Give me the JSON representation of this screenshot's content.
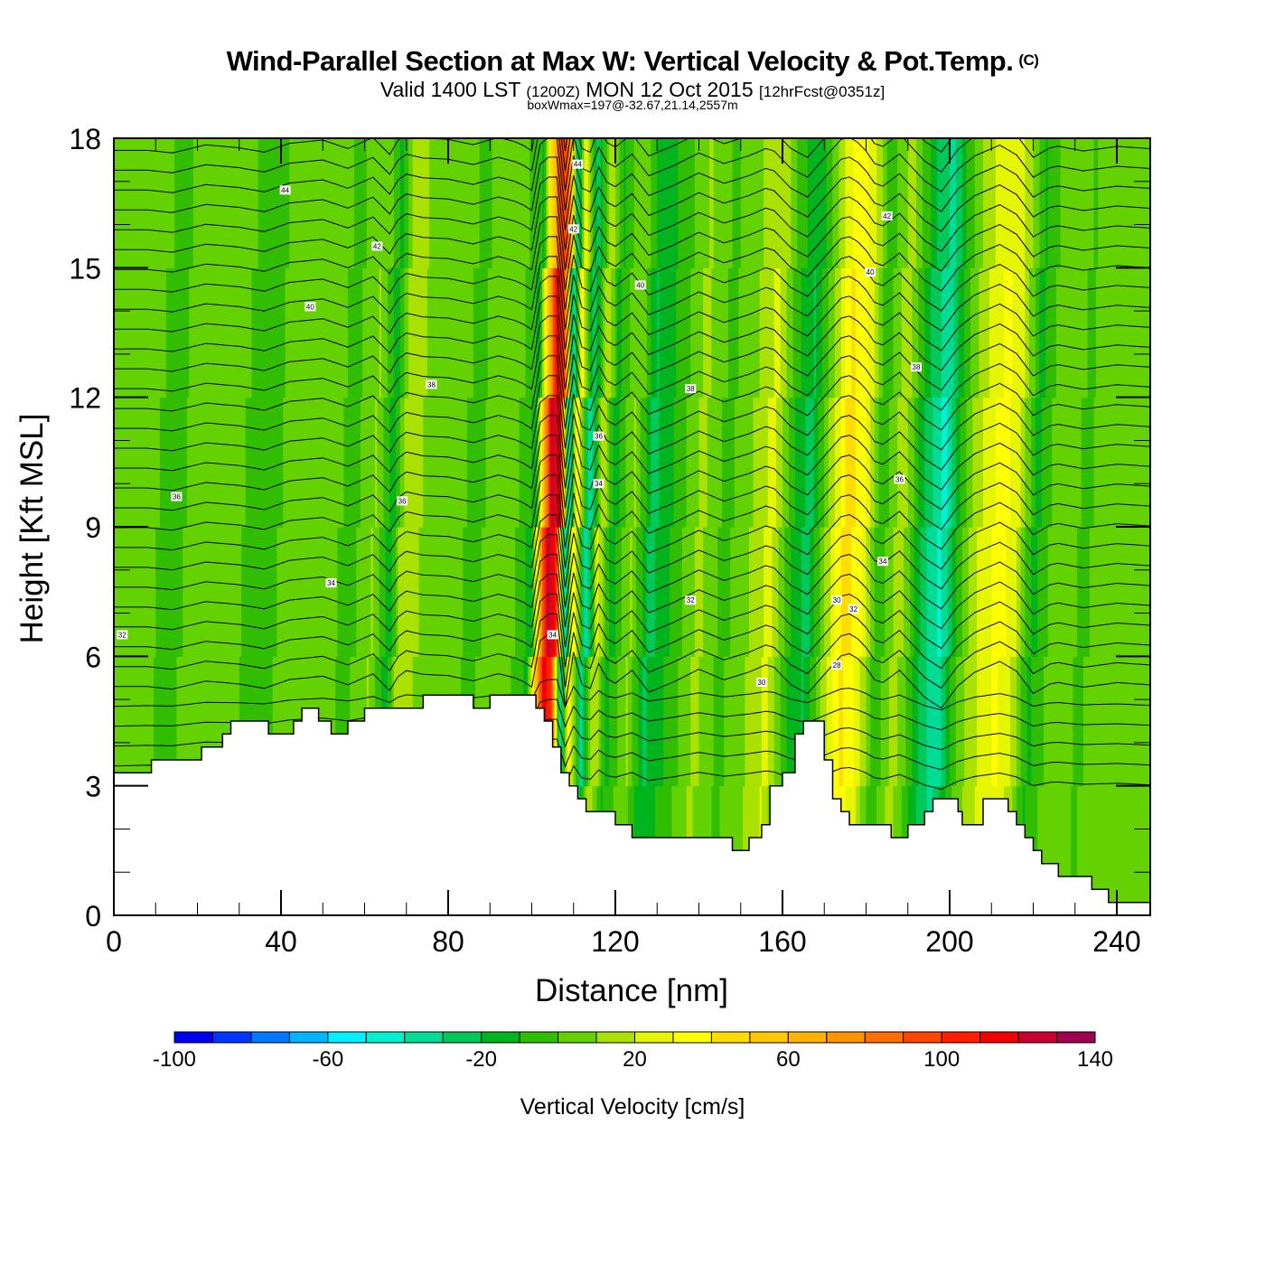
{
  "header": {
    "title": "Wind-Parallel Section at Max W: Vertical Velocity & Pot.Temp.",
    "copyright": "(C)",
    "subtitle_prefix": "Valid 1400 LST",
    "subtitle_utc": "(1200Z)",
    "subtitle_date": "MON 12 Oct 2015",
    "subtitle_forecast": "[12hrFcst@0351z]",
    "subsubtitle": "boxWmax=197@-32.67,21.14,2557m"
  },
  "chart_data": {
    "type": "heatmap",
    "title": "Wind-Parallel Section at Max W: Vertical Velocity & Pot.Temp.",
    "xlabel": "Distance [nm]",
    "ylabel": "Height [Kft MSL]",
    "xlim": [
      0,
      248
    ],
    "ylim": [
      0,
      18
    ],
    "x_ticks": [
      0,
      40,
      80,
      120,
      160,
      200,
      240
    ],
    "y_ticks": [
      0,
      3,
      6,
      9,
      12,
      15,
      18
    ],
    "colorbar": {
      "title": "Vertical Velocity [cm/s]",
      "levels": [
        -100,
        -90,
        -80,
        -70,
        -60,
        -50,
        -40,
        -30,
        -20,
        -10,
        0,
        10,
        20,
        30,
        40,
        50,
        60,
        70,
        80,
        90,
        100,
        110,
        120,
        130,
        140
      ],
      "tick_labels": [
        "-100",
        "-60",
        "-20",
        "20",
        "60",
        "100",
        "140"
      ],
      "colors": [
        "#0000f0",
        "#0036ff",
        "#0078ff",
        "#00b4ff",
        "#00f0ff",
        "#00f0d2",
        "#00dc96",
        "#00c85a",
        "#00b41e",
        "#32be00",
        "#64d200",
        "#aae100",
        "#e6f500",
        "#ffff00",
        "#ffdc00",
        "#ffc800",
        "#ffb400",
        "#ff9600",
        "#ff6e00",
        "#ff4600",
        "#ff1e00",
        "#f00000",
        "#c8002d",
        "#a00050"
      ]
    },
    "w_bands": [
      {
        "x": 0,
        "w": 0
      },
      {
        "x": 8,
        "w": -2
      },
      {
        "x": 14,
        "w": -8
      },
      {
        "x": 22,
        "w": 4
      },
      {
        "x": 30,
        "w": -3
      },
      {
        "x": 36,
        "w": -12
      },
      {
        "x": 42,
        "w": 2
      },
      {
        "x": 50,
        "w": 6
      },
      {
        "x": 56,
        "w": -10
      },
      {
        "x": 62,
        "w": 8
      },
      {
        "x": 66,
        "w": -22
      },
      {
        "x": 69,
        "w": 14
      },
      {
        "x": 74,
        "w": 5
      },
      {
        "x": 80,
        "w": 2
      },
      {
        "x": 86,
        "w": -8
      },
      {
        "x": 92,
        "w": 4
      },
      {
        "x": 97,
        "w": -6
      },
      {
        "x": 100,
        "w": -20
      },
      {
        "x": 102,
        "w": 60
      },
      {
        "x": 104,
        "w": 130
      },
      {
        "x": 106,
        "w": 110
      },
      {
        "x": 108,
        "w": -55
      },
      {
        "x": 110,
        "w": 40
      },
      {
        "x": 113,
        "w": -45
      },
      {
        "x": 116,
        "w": 20
      },
      {
        "x": 119,
        "w": -20
      },
      {
        "x": 124,
        "w": 8
      },
      {
        "x": 128,
        "w": -30
      },
      {
        "x": 134,
        "w": -12
      },
      {
        "x": 140,
        "w": 10
      },
      {
        "x": 146,
        "w": -8
      },
      {
        "x": 152,
        "w": 6
      },
      {
        "x": 157,
        "w": 22
      },
      {
        "x": 162,
        "w": -15
      },
      {
        "x": 166,
        "w": -30
      },
      {
        "x": 171,
        "w": 12
      },
      {
        "x": 175,
        "w": 45
      },
      {
        "x": 179,
        "w": 28
      },
      {
        "x": 183,
        "w": -14
      },
      {
        "x": 188,
        "w": 14
      },
      {
        "x": 194,
        "w": -32
      },
      {
        "x": 198,
        "w": -50
      },
      {
        "x": 202,
        "w": -10
      },
      {
        "x": 206,
        "w": 14
      },
      {
        "x": 212,
        "w": 34
      },
      {
        "x": 216,
        "w": 18
      },
      {
        "x": 220,
        "w": -20
      },
      {
        "x": 225,
        "w": 2
      },
      {
        "x": 232,
        "w": -6
      },
      {
        "x": 240,
        "w": 4
      },
      {
        "x": 248,
        "w": 2
      }
    ],
    "terrain": [
      {
        "x": 0,
        "h": 3.3
      },
      {
        "x": 9,
        "h": 3.3
      },
      {
        "x": 9,
        "h": 3.6
      },
      {
        "x": 21,
        "h": 3.6
      },
      {
        "x": 21,
        "h": 3.9
      },
      {
        "x": 26,
        "h": 3.9
      },
      {
        "x": 26,
        "h": 4.2
      },
      {
        "x": 28,
        "h": 4.2
      },
      {
        "x": 28,
        "h": 4.5
      },
      {
        "x": 37,
        "h": 4.5
      },
      {
        "x": 37,
        "h": 4.2
      },
      {
        "x": 43,
        "h": 4.2
      },
      {
        "x": 43,
        "h": 4.5
      },
      {
        "x": 45,
        "h": 4.5
      },
      {
        "x": 45,
        "h": 4.8
      },
      {
        "x": 49,
        "h": 4.8
      },
      {
        "x": 49,
        "h": 4.5
      },
      {
        "x": 52,
        "h": 4.5
      },
      {
        "x": 52,
        "h": 4.2
      },
      {
        "x": 56,
        "h": 4.2
      },
      {
        "x": 56,
        "h": 4.5
      },
      {
        "x": 60,
        "h": 4.5
      },
      {
        "x": 60,
        "h": 4.8
      },
      {
        "x": 74,
        "h": 4.8
      },
      {
        "x": 74,
        "h": 5.1
      },
      {
        "x": 86,
        "h": 5.1
      },
      {
        "x": 86,
        "h": 4.8
      },
      {
        "x": 90,
        "h": 4.8
      },
      {
        "x": 90,
        "h": 5.1
      },
      {
        "x": 101,
        "h": 5.1
      },
      {
        "x": 101,
        "h": 4.8
      },
      {
        "x": 103,
        "h": 4.8
      },
      {
        "x": 103,
        "h": 4.5
      },
      {
        "x": 105,
        "h": 4.5
      },
      {
        "x": 105,
        "h": 3.9
      },
      {
        "x": 107,
        "h": 3.9
      },
      {
        "x": 107,
        "h": 3.3
      },
      {
        "x": 109,
        "h": 3.3
      },
      {
        "x": 109,
        "h": 3.0
      },
      {
        "x": 111,
        "h": 3.0
      },
      {
        "x": 111,
        "h": 2.7
      },
      {
        "x": 113,
        "h": 2.7
      },
      {
        "x": 113,
        "h": 2.4
      },
      {
        "x": 120,
        "h": 2.4
      },
      {
        "x": 120,
        "h": 2.1
      },
      {
        "x": 124,
        "h": 2.1
      },
      {
        "x": 124,
        "h": 1.8
      },
      {
        "x": 148,
        "h": 1.8
      },
      {
        "x": 148,
        "h": 1.5
      },
      {
        "x": 152,
        "h": 1.5
      },
      {
        "x": 152,
        "h": 1.8
      },
      {
        "x": 155,
        "h": 1.8
      },
      {
        "x": 155,
        "h": 2.1
      },
      {
        "x": 157,
        "h": 2.1
      },
      {
        "x": 157,
        "h": 3.0
      },
      {
        "x": 160,
        "h": 3.0
      },
      {
        "x": 160,
        "h": 3.3
      },
      {
        "x": 163,
        "h": 3.3
      },
      {
        "x": 163,
        "h": 4.2
      },
      {
        "x": 165,
        "h": 4.2
      },
      {
        "x": 165,
        "h": 4.5
      },
      {
        "x": 170,
        "h": 4.5
      },
      {
        "x": 170,
        "h": 3.6
      },
      {
        "x": 172,
        "h": 3.6
      },
      {
        "x": 172,
        "h": 2.7
      },
      {
        "x": 174,
        "h": 2.7
      },
      {
        "x": 174,
        "h": 2.4
      },
      {
        "x": 176,
        "h": 2.4
      },
      {
        "x": 176,
        "h": 2.1
      },
      {
        "x": 186,
        "h": 2.1
      },
      {
        "x": 186,
        "h": 1.8
      },
      {
        "x": 190,
        "h": 1.8
      },
      {
        "x": 190,
        "h": 2.1
      },
      {
        "x": 194,
        "h": 2.1
      },
      {
        "x": 194,
        "h": 2.4
      },
      {
        "x": 196,
        "h": 2.4
      },
      {
        "x": 196,
        "h": 2.7
      },
      {
        "x": 202,
        "h": 2.7
      },
      {
        "x": 202,
        "h": 2.4
      },
      {
        "x": 203,
        "h": 2.4
      },
      {
        "x": 203,
        "h": 2.1
      },
      {
        "x": 208,
        "h": 2.1
      },
      {
        "x": 208,
        "h": 2.7
      },
      {
        "x": 214,
        "h": 2.7
      },
      {
        "x": 214,
        "h": 2.4
      },
      {
        "x": 216,
        "h": 2.4
      },
      {
        "x": 216,
        "h": 2.1
      },
      {
        "x": 218,
        "h": 2.1
      },
      {
        "x": 218,
        "h": 1.8
      },
      {
        "x": 220,
        "h": 1.8
      },
      {
        "x": 220,
        "h": 1.5
      },
      {
        "x": 222,
        "h": 1.5
      },
      {
        "x": 222,
        "h": 1.2
      },
      {
        "x": 226,
        "h": 1.2
      },
      {
        "x": 226,
        "h": 0.9
      },
      {
        "x": 234,
        "h": 0.9
      },
      {
        "x": 234,
        "h": 0.6
      },
      {
        "x": 238,
        "h": 0.6
      },
      {
        "x": 238,
        "h": 0.3
      },
      {
        "x": 248,
        "h": 0.3
      }
    ],
    "theta_contour_interval": 2,
    "contour_labels": [
      {
        "text": "44",
        "x": 41,
        "y": 16.8
      },
      {
        "text": "42",
        "x": 63,
        "y": 15.5
      },
      {
        "text": "40",
        "x": 47,
        "y": 14.1
      },
      {
        "text": "38",
        "x": 76,
        "y": 12.3
      },
      {
        "text": "44",
        "x": 111,
        "y": 17.4
      },
      {
        "text": "42",
        "x": 110,
        "y": 15.9
      },
      {
        "text": "40",
        "x": 126,
        "y": 14.6
      },
      {
        "text": "38",
        "x": 138,
        "y": 12.2
      },
      {
        "text": "36",
        "x": 116,
        "y": 11.1
      },
      {
        "text": "34",
        "x": 116,
        "y": 10.0
      },
      {
        "text": "32",
        "x": 138,
        "y": 7.3
      },
      {
        "text": "34",
        "x": 105,
        "y": 6.5
      },
      {
        "text": "30",
        "x": 155,
        "y": 5.4
      },
      {
        "text": "36",
        "x": 15,
        "y": 9.7
      },
      {
        "text": "36",
        "x": 69,
        "y": 9.6
      },
      {
        "text": "34",
        "x": 52,
        "y": 7.7
      },
      {
        "text": "32",
        "x": 2,
        "y": 6.5
      },
      {
        "text": "42",
        "x": 185,
        "y": 16.2
      },
      {
        "text": "40",
        "x": 181,
        "y": 14.9
      },
      {
        "text": "38",
        "x": 192,
        "y": 12.7
      },
      {
        "text": "36",
        "x": 188,
        "y": 10.1
      },
      {
        "text": "34",
        "x": 184,
        "y": 8.2
      },
      {
        "text": "30",
        "x": 173,
        "y": 7.3
      },
      {
        "text": "32",
        "x": 177,
        "y": 7.1
      },
      {
        "text": "28",
        "x": 173,
        "y": 5.8
      }
    ]
  }
}
